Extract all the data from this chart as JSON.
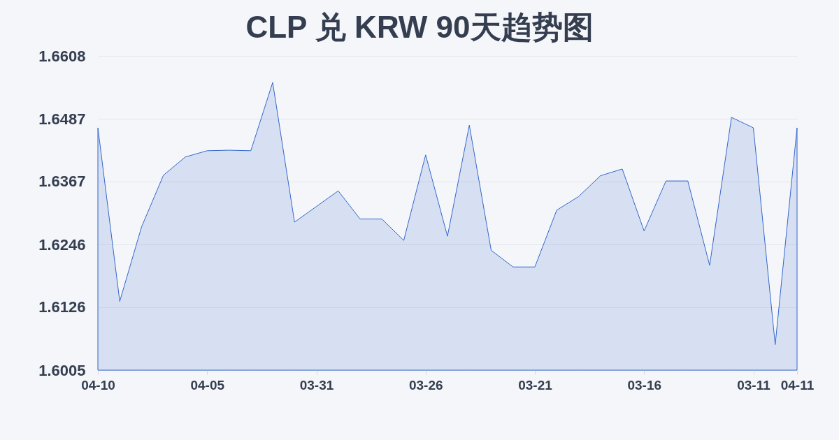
{
  "chart_data": {
    "type": "area",
    "title": "CLP 兑 KRW 90天趋势图",
    "categories": [
      "04-10",
      null,
      null,
      null,
      null,
      "04-05",
      null,
      null,
      null,
      null,
      "03-31",
      null,
      null,
      null,
      null,
      "03-26",
      null,
      null,
      null,
      null,
      "03-21",
      null,
      null,
      null,
      null,
      "03-16",
      null,
      null,
      null,
      null,
      "03-11",
      null,
      "04-11"
    ],
    "values": [
      1.647,
      1.6137,
      1.628,
      1.6379,
      1.6414,
      1.6426,
      1.6427,
      1.6426,
      1.6557,
      1.6289,
      1.6319,
      1.6349,
      1.6295,
      1.6295,
      1.6254,
      1.6418,
      1.6262,
      1.6475,
      1.6235,
      1.6203,
      1.6203,
      1.6312,
      1.6338,
      1.6378,
      1.6391,
      1.6272,
      1.6368,
      1.6368,
      1.6206,
      1.649,
      1.647,
      1.6054,
      1.647
    ],
    "color": "#3366cc",
    "ylim": [
      1.6005,
      1.6608
    ],
    "yticks": [
      1.6005,
      1.6126,
      1.6246,
      1.6367,
      1.6487,
      1.6608
    ],
    "grid": "y"
  }
}
